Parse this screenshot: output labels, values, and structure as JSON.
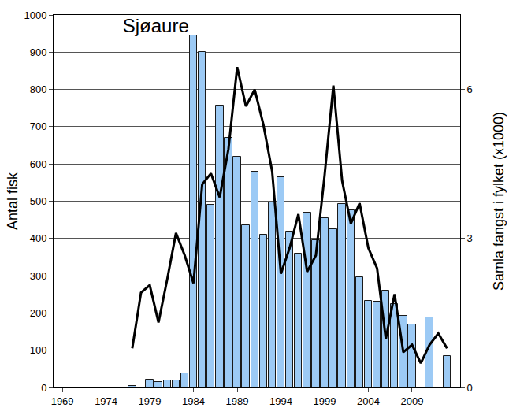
{
  "chart_data": {
    "type": "bar",
    "title": "Sjøaure",
    "x": [
      1969,
      1970,
      1971,
      1972,
      1973,
      1974,
      1975,
      1976,
      1977,
      1978,
      1979,
      1980,
      1981,
      1982,
      1983,
      1984,
      1985,
      1986,
      1987,
      1988,
      1989,
      1990,
      1991,
      1992,
      1993,
      1994,
      1995,
      1996,
      1997,
      1998,
      1999,
      2000,
      2001,
      2002,
      2003,
      2004,
      2005,
      2006,
      2007,
      2008,
      2009,
      2010,
      2011,
      2012,
      2013
    ],
    "y_label": "Antal fisk",
    "y2_label": "Samla fangst i fylket (x1000)",
    "series": [
      {
        "name": "Antal fisk",
        "type": "bar",
        "color": "#9ccaf5",
        "values": [
          null,
          null,
          null,
          null,
          null,
          null,
          null,
          null,
          5,
          null,
          22,
          15,
          18,
          20,
          38,
          945,
          900,
          490,
          757,
          670,
          620,
          435,
          580,
          410,
          497,
          565,
          418,
          360,
          470,
          395,
          455,
          425,
          493,
          475,
          295,
          232,
          230,
          260,
          225,
          193,
          170,
          null,
          188,
          null,
          85
        ]
      },
      {
        "name": "Samla fangst i fylket",
        "type": "line",
        "axis": "y2",
        "color": "#000000",
        "values": [
          null,
          null,
          null,
          null,
          null,
          null,
          null,
          null,
          0.79,
          1.91,
          2.06,
          1.31,
          2.18,
          3.11,
          2.66,
          2.1,
          4.09,
          4.31,
          3.83,
          4.8,
          6.45,
          5.66,
          6.0,
          5.29,
          4.35,
          2.29,
          2.81,
          3.49,
          2.33,
          2.66,
          4.28,
          6.08,
          4.16,
          3.3,
          3.71,
          2.81,
          2.4,
          0.98,
          1.88,
          0.71,
          0.86,
          0.49,
          0.86,
          1.09,
          0.79
        ]
      }
    ],
    "xlim": [
      1968,
      2014.5
    ],
    "xticks": [
      1969,
      1974,
      1979,
      1984,
      1989,
      1994,
      1999,
      2004,
      2009
    ],
    "ylim": [
      0,
      1000
    ],
    "yticks": [
      0,
      100,
      200,
      300,
      400,
      500,
      600,
      700,
      800,
      900,
      1000
    ],
    "y2lim": [
      0,
      7.5
    ],
    "y2ticks": [
      0,
      3,
      6
    ],
    "grid": true
  }
}
